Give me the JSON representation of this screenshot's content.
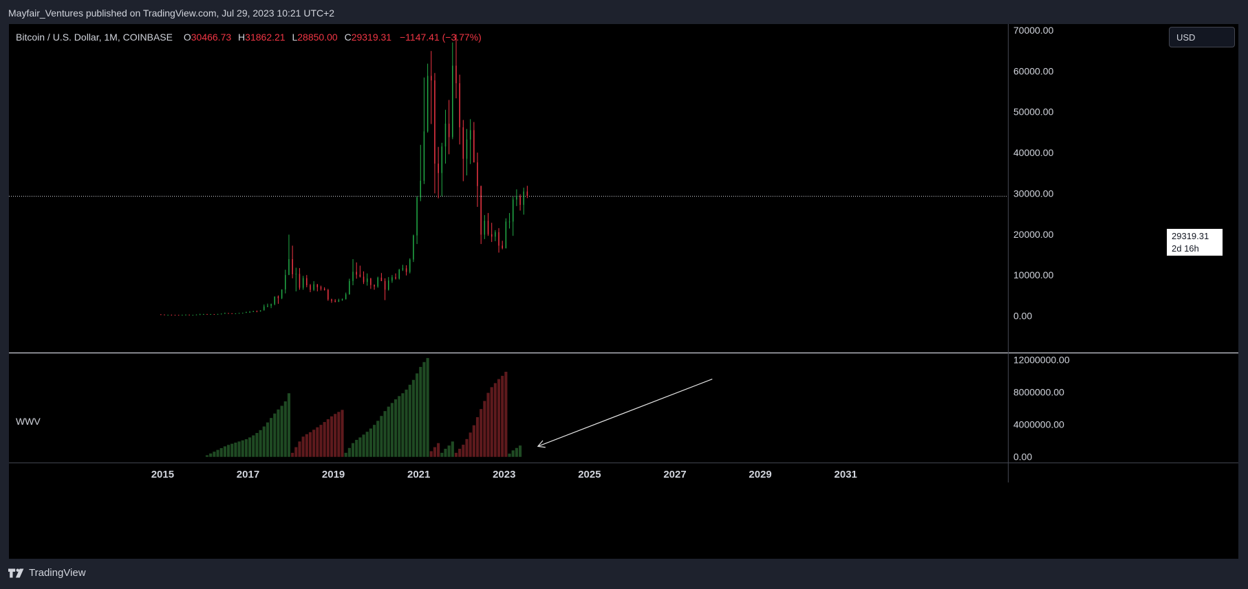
{
  "caption": "Mayfair_Ventures published on TradingView.com, Jul 29, 2023 10:21 UTC+2",
  "legend": {
    "symbol": "Bitcoin / U.S. Dollar, 1M, COINBASE",
    "open_label": "O",
    "open": "30466.73",
    "high_label": "H",
    "high": "31862.21",
    "low_label": "L",
    "low": "28850.00",
    "close_label": "C",
    "close": "29319.31",
    "change": "−1147.41 (−3.77%)"
  },
  "currency_button": "USD",
  "last_price_tag": {
    "price": "29319.31",
    "countdown": "2d 16h"
  },
  "indicator_title": "WWV",
  "footer": {
    "brand": "TradingView",
    "logo_icon": "tradingview-logo-icon"
  },
  "colors": {
    "up": "#22ab47",
    "down": "#f23645",
    "vol_up": "#1f4a23",
    "vol_down": "#5e1a1d",
    "background": "#000000"
  },
  "chart_data": [
    {
      "type": "candlestick",
      "ylim": [
        -9000,
        71500
      ],
      "y_ticks": [
        "70000.00",
        "60000.00",
        "50000.00",
        "40000.00",
        "30000.00",
        "20000.00",
        "10000.00",
        "0.00"
      ],
      "y_tick_values": [
        70000,
        60000,
        50000,
        40000,
        30000,
        20000,
        10000,
        0
      ],
      "x_ticks": [
        "2015",
        "2017",
        "2019",
        "2021",
        "2023",
        "2025",
        "2027",
        "2029",
        "2031"
      ],
      "x_tick_years": [
        2015,
        2017,
        2019,
        2021,
        2023,
        2025,
        2027,
        2029,
        2031
      ],
      "xlim": [
        2011.4,
        2034.8
      ],
      "last_price": 29319.31,
      "series": [
        {
          "months": [
            "2014-12",
            "2015-01",
            "2015-02",
            "2015-03",
            "2015-04",
            "2015-05",
            "2015-06",
            "2015-07",
            "2015-08",
            "2015-09",
            "2015-10",
            "2015-11",
            "2015-12",
            "2016-01",
            "2016-02",
            "2016-03",
            "2016-04",
            "2016-05",
            "2016-06",
            "2016-07",
            "2016-08",
            "2016-09",
            "2016-10",
            "2016-11",
            "2016-12",
            "2017-01",
            "2017-02",
            "2017-03",
            "2017-04",
            "2017-05",
            "2017-06",
            "2017-07",
            "2017-08",
            "2017-09",
            "2017-10",
            "2017-11",
            "2017-12",
            "2018-01",
            "2018-02",
            "2018-03",
            "2018-04",
            "2018-05",
            "2018-06",
            "2018-07",
            "2018-08",
            "2018-09",
            "2018-10",
            "2018-11",
            "2018-12",
            "2019-01",
            "2019-02",
            "2019-03",
            "2019-04",
            "2019-05",
            "2019-06",
            "2019-07",
            "2019-08",
            "2019-09",
            "2019-10",
            "2019-11",
            "2019-12",
            "2020-01",
            "2020-02",
            "2020-03",
            "2020-04",
            "2020-05",
            "2020-06",
            "2020-07",
            "2020-08",
            "2020-09",
            "2020-10",
            "2020-11",
            "2020-12",
            "2021-01",
            "2021-02",
            "2021-03",
            "2021-04",
            "2021-05",
            "2021-06",
            "2021-07",
            "2021-08",
            "2021-09",
            "2021-10",
            "2021-11",
            "2021-12",
            "2022-01",
            "2022-02",
            "2022-03",
            "2022-04",
            "2022-05",
            "2022-06",
            "2022-07",
            "2022-08",
            "2022-09",
            "2022-10",
            "2022-11",
            "2022-12",
            "2023-01",
            "2023-02",
            "2023-03",
            "2023-04",
            "2023-05",
            "2023-06",
            "2023-07"
          ],
          "open": [
            375,
            320,
            218,
            254,
            244,
            236,
            230,
            264,
            284,
            230,
            237,
            311,
            378,
            430,
            369,
            437,
            416,
            448,
            531,
            670,
            624,
            575,
            609,
            700,
            742,
            963,
            966,
            1190,
            1070,
            1350,
            2290,
            2480,
            2870,
            4740,
            4330,
            6460,
            10000,
            13900,
            10200,
            10300,
            6900,
            9240,
            7500,
            6390,
            7730,
            7030,
            6620,
            6340,
            4030,
            3700,
            3450,
            3820,
            4100,
            5280,
            8550,
            10800,
            10100,
            9600,
            8290,
            9150,
            7560,
            7200,
            9350,
            8520,
            6410,
            8630,
            9450,
            9140,
            11330,
            11650,
            10780,
            13800,
            19700,
            29000,
            33100,
            45200,
            58800,
            57700,
            37300,
            35000,
            41500,
            47100,
            43800,
            61300,
            57000,
            46200,
            38500,
            43200,
            45500,
            37600,
            31800,
            19900,
            23300,
            20000,
            19400,
            20500,
            17200,
            16600,
            23100,
            23100,
            28500,
            29200,
            27200,
            30470
          ],
          "high": [
            380,
            320,
            270,
            300,
            265,
            250,
            270,
            318,
            290,
            255,
            335,
            500,
            465,
            460,
            440,
            428,
            470,
            550,
            780,
            700,
            630,
            610,
            715,
            750,
            980,
            1150,
            1200,
            1290,
            1360,
            2770,
            3000,
            3000,
            4740,
            5000,
            6450,
            11300,
            19900,
            17200,
            11800,
            11700,
            9800,
            10000,
            7800,
            8500,
            7800,
            7400,
            7000,
            6600,
            4200,
            4100,
            4200,
            4250,
            5700,
            9100,
            13900,
            13100,
            12300,
            10900,
            10400,
            9300,
            7700,
            9600,
            10500,
            9200,
            9500,
            10000,
            10400,
            11500,
            12500,
            12400,
            14100,
            19900,
            29300,
            41900,
            58400,
            61800,
            64900,
            59500,
            41400,
            42400,
            50500,
            52900,
            67000,
            69000,
            59100,
            48000,
            45800,
            48200,
            47500,
            40000,
            31900,
            24700,
            25200,
            22800,
            21000,
            21500,
            18400,
            23900,
            25200,
            29200,
            31000,
            29800,
            31400,
            31862
          ],
          "low": [
            300,
            170,
            212,
            240,
            214,
            225,
            220,
            262,
            200,
            226,
            235,
            305,
            355,
            355,
            365,
            409,
            415,
            440,
            530,
            600,
            570,
            590,
            605,
            690,
            740,
            760,
            945,
            890,
            1060,
            1300,
            2100,
            1900,
            2600,
            2950,
            4100,
            5500,
            10800,
            9200,
            6000,
            6400,
            6400,
            7000,
            5800,
            6100,
            6000,
            6200,
            6200,
            3700,
            3200,
            3300,
            3400,
            3700,
            4000,
            5200,
            7500,
            9100,
            9400,
            7800,
            7400,
            6600,
            6400,
            6900,
            8500,
            3850,
            6200,
            8100,
            8900,
            8900,
            11000,
            9900,
            10400,
            13200,
            17600,
            28100,
            32300,
            44900,
            47000,
            30000,
            28800,
            29300,
            37300,
            39600,
            43300,
            53300,
            42000,
            33000,
            34400,
            37200,
            37600,
            26700,
            17600,
            18800,
            19600,
            18100,
            18300,
            15500,
            16300,
            16500,
            21400,
            19600,
            26900,
            25800,
            24800,
            28850
          ],
          "close": [
            320,
            218,
            254,
            244,
            236,
            230,
            264,
            284,
            230,
            237,
            311,
            378,
            430,
            369,
            437,
            416,
            448,
            531,
            670,
            624,
            575,
            609,
            700,
            742,
            963,
            966,
            1190,
            1070,
            1350,
            2290,
            2480,
            2870,
            4740,
            4330,
            6460,
            10000,
            13900,
            10200,
            10300,
            6900,
            9240,
            7500,
            6390,
            7730,
            7030,
            6620,
            6340,
            4030,
            3700,
            3450,
            3820,
            4100,
            5280,
            8550,
            10800,
            10100,
            9600,
            8290,
            9150,
            7560,
            7200,
            9350,
            8520,
            6410,
            8630,
            9450,
            9140,
            11330,
            11650,
            10780,
            13800,
            19700,
            29000,
            33100,
            45200,
            58800,
            57700,
            37300,
            35000,
            41500,
            47100,
            43800,
            61300,
            57000,
            46200,
            38500,
            43200,
            45500,
            37600,
            31800,
            19900,
            23300,
            20000,
            19400,
            20500,
            17200,
            16600,
            23100,
            23100,
            28500,
            29200,
            27200,
            30470,
            29319
          ]
        }
      ]
    },
    {
      "type": "bar",
      "title": "WWV",
      "ylim": [
        -700000,
        12700000
      ],
      "y_ticks": [
        "12000000.00",
        "8000000.00",
        "4000000.00",
        "0.00"
      ],
      "y_tick_values": [
        12000000,
        8000000,
        4000000,
        0
      ],
      "series": [
        {
          "start_month": "2016-01",
          "values": [
            200000,
            420000,
            640000,
            860000,
            1080000,
            1300000,
            1480000,
            1620000,
            1760000,
            1900000,
            2040000,
            2180000,
            2400000,
            2650000,
            2950000,
            3300000,
            3750000,
            4250000,
            4800000,
            5350000,
            5850000,
            6300000,
            6850000,
            7850000,
            500000,
            1200000,
            1900000,
            2500000,
            2800000,
            3050000,
            3350000,
            3650000,
            3950000,
            4300000,
            4650000,
            5000000,
            5300000,
            5550000,
            5800000,
            500000,
            1100000,
            1700000,
            2100000,
            2400000,
            2750000,
            3100000,
            3500000,
            3950000,
            4450000,
            5050000,
            5650000,
            6200000,
            6650000,
            7100000,
            7500000,
            7850000,
            8300000,
            8900000,
            9500000,
            10300000,
            11100000,
            11700000,
            12200000,
            700000,
            1200000,
            1700000,
            500000,
            1000000,
            1400000,
            1900000,
            500000,
            1000000,
            1500000,
            2200000,
            3000000,
            3900000,
            4900000,
            5900000,
            6900000,
            7900000,
            8600000,
            9100000,
            9600000,
            10000000,
            10500000,
            400000,
            800000,
            1100000,
            1400000
          ],
          "colors": [
            "up",
            "up",
            "up",
            "up",
            "up",
            "up",
            "up",
            "up",
            "up",
            "up",
            "up",
            "up",
            "up",
            "up",
            "up",
            "up",
            "up",
            "up",
            "up",
            "up",
            "up",
            "up",
            "up",
            "up",
            "down",
            "down",
            "down",
            "down",
            "down",
            "down",
            "down",
            "down",
            "down",
            "down",
            "down",
            "down",
            "down",
            "down",
            "down",
            "up",
            "up",
            "up",
            "up",
            "up",
            "up",
            "up",
            "up",
            "up",
            "up",
            "up",
            "up",
            "up",
            "up",
            "up",
            "up",
            "up",
            "up",
            "up",
            "up",
            "up",
            "up",
            "up",
            "up",
            "down",
            "down",
            "down",
            "up",
            "up",
            "up",
            "up",
            "down",
            "down",
            "down",
            "down",
            "down",
            "down",
            "down",
            "down",
            "down",
            "down",
            "down",
            "down",
            "down",
            "down",
            "down",
            "up",
            "up",
            "up",
            "up"
          ]
        }
      ],
      "annotation": {
        "type": "arrow",
        "from": [
          "2027-11",
          9600000
        ],
        "to": [
          "2023-10",
          1300000
        ]
      }
    }
  ]
}
